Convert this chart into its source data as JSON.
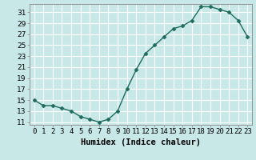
{
  "x": [
    0,
    1,
    2,
    3,
    4,
    5,
    6,
    7,
    8,
    9,
    10,
    11,
    12,
    13,
    14,
    15,
    16,
    17,
    18,
    19,
    20,
    21,
    22,
    23
  ],
  "y": [
    15,
    14,
    14,
    13.5,
    13,
    12,
    11.5,
    11,
    11.5,
    13,
    17,
    20.5,
    23.5,
    25,
    26.5,
    28,
    28.5,
    29.5,
    32,
    32,
    31.5,
    31,
    29.5,
    26.5
  ],
  "line_color": "#1e6b5e",
  "marker": "D",
  "marker_size": 2.5,
  "background_color": "#c8e8e8",
  "grid_color": "#ffffff",
  "xlabel": "Humidex (Indice chaleur)",
  "ylim": [
    10.5,
    32.5
  ],
  "xlim": [
    -0.5,
    23.5
  ],
  "yticks": [
    11,
    13,
    15,
    17,
    19,
    21,
    23,
    25,
    27,
    29,
    31
  ],
  "xtick_labels": [
    "0",
    "1",
    "2",
    "3",
    "4",
    "5",
    "6",
    "7",
    "8",
    "9",
    "10",
    "11",
    "12",
    "13",
    "14",
    "15",
    "16",
    "17",
    "18",
    "19",
    "20",
    "21",
    "22",
    "23"
  ],
  "xlabel_fontsize": 7.5,
  "tick_fontsize": 6.5,
  "line_width": 1.0
}
